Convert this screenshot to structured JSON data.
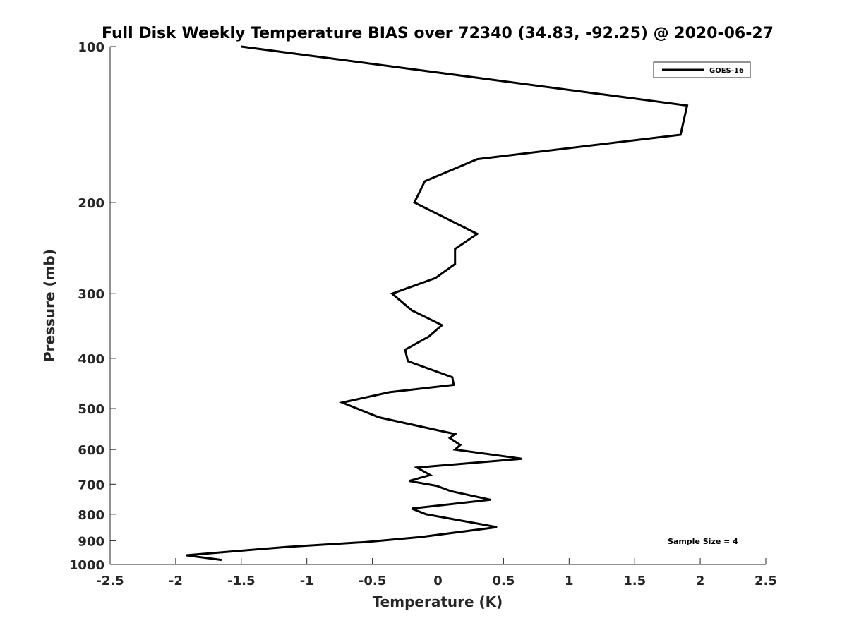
{
  "chart_data": {
    "type": "line",
    "title": "Full Disk Weekly Temperature BIAS over 72340 (34.83, -92.25) @ 2020-06-27",
    "xlabel": "Temperature (K)",
    "ylabel": "Pressure (mb)",
    "xlim": [
      -2.5,
      2.5
    ],
    "ylim": [
      1000,
      100
    ],
    "y_scale": "log",
    "y_reversed": true,
    "x_ticks": [
      -2.5,
      -2,
      -1.5,
      -1,
      -0.5,
      0,
      0.5,
      1,
      1.5,
      2,
      2.5
    ],
    "x_tick_labels": [
      "-2.5",
      "-2",
      "-1.5",
      "-1",
      "-0.5",
      "0",
      "0.5",
      "1",
      "1.5",
      "2",
      "2.5"
    ],
    "y_ticks": [
      100,
      200,
      300,
      400,
      500,
      600,
      700,
      800,
      900,
      1000
    ],
    "y_tick_labels": [
      "100",
      "200",
      "300",
      "400",
      "500",
      "600",
      "700",
      "800",
      "900",
      "1000"
    ],
    "grid": false,
    "legend_position": "top-right",
    "series": [
      {
        "name": "GOES-16",
        "color": "#000000",
        "x": [
          -1.5,
          1.9,
          1.85,
          0.3,
          -0.1,
          -0.18,
          0.3,
          0.13,
          0.13,
          -0.02,
          -0.35,
          -0.2,
          0.03,
          -0.07,
          -0.25,
          -0.23,
          0.11,
          0.12,
          -0.37,
          -0.73,
          -0.45,
          0.13,
          0.09,
          0.17,
          0.13,
          0.64,
          -0.16,
          -0.06,
          -0.22,
          -0.01,
          0.1,
          0.4,
          -0.2,
          -0.09,
          0.35,
          0.45,
          -0.13,
          -0.55,
          -1.15,
          -1.92,
          -1.65
        ],
        "y": [
          100,
          130,
          148,
          165,
          182,
          200,
          230,
          246,
          263,
          280,
          300,
          323,
          345,
          363,
          385,
          405,
          435,
          450,
          465,
          487,
          520,
          560,
          570,
          588,
          600,
          625,
          650,
          672,
          690,
          705,
          722,
          750,
          780,
          800,
          838,
          847,
          885,
          905,
          925,
          960,
          980
        ]
      }
    ],
    "annotations": [
      "Sample Size = 4"
    ]
  }
}
